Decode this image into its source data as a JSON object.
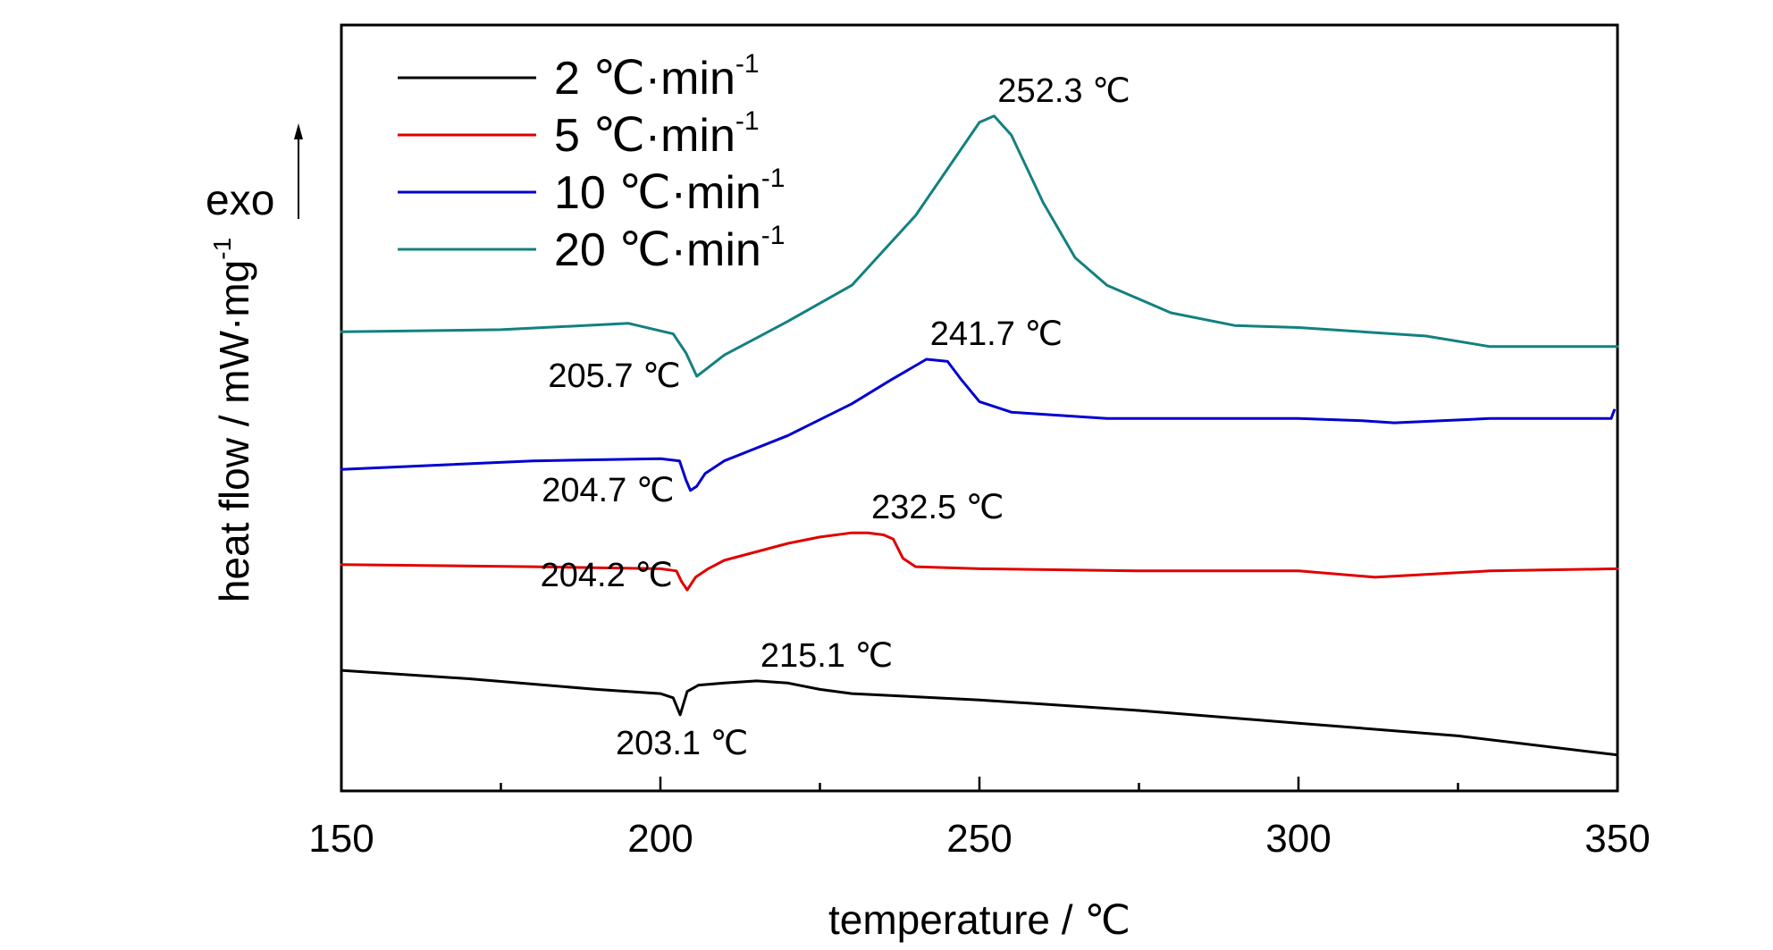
{
  "chart_data": {
    "type": "line",
    "xlabel": "temperature / ℃",
    "ylabel": "heat flow / mW·mg",
    "ylabel_superscript": "-1",
    "exo_label": "exo",
    "xlim": [
      150,
      350
    ],
    "x_ticks": [
      150,
      200,
      250,
      300,
      350
    ],
    "x_tick_labels": [
      "150",
      "200",
      "250",
      "300",
      "350"
    ],
    "y_ticks_shown": false,
    "legend_position": "top-left",
    "series": [
      {
        "name": "2 ℃·min",
        "name_superscript": "-1",
        "color": "#000000",
        "x": [
          150,
          170,
          190,
          200,
          202,
          203.1,
          204.2,
          206,
          210,
          215.1,
          220,
          225,
          230,
          250,
          275,
          300,
          325,
          350
        ],
        "y": [
          -1.15,
          -1.19,
          -1.24,
          -1.26,
          -1.28,
          -1.36,
          -1.25,
          -1.22,
          -1.21,
          -1.2,
          -1.21,
          -1.24,
          -1.26,
          -1.29,
          -1.34,
          -1.4,
          -1.46,
          -1.55
        ]
      },
      {
        "name": "5 ℃·min",
        "name_superscript": "-1",
        "color": "#e00000",
        "x": [
          150,
          180,
          200,
          202.5,
          203.3,
          204.2,
          205.5,
          207.5,
          210,
          215,
          220,
          225,
          230,
          232.5,
          235,
          236.5,
          238,
          240,
          250,
          275,
          300,
          312,
          330,
          350
        ],
        "y": [
          -0.65,
          -0.66,
          -0.67,
          -0.68,
          -0.73,
          -0.77,
          -0.71,
          -0.67,
          -0.63,
          -0.59,
          -0.55,
          -0.52,
          -0.5,
          -0.5,
          -0.51,
          -0.53,
          -0.62,
          -0.66,
          -0.67,
          -0.68,
          -0.68,
          -0.71,
          -0.68,
          -0.67
        ]
      },
      {
        "name": "10 ℃·min",
        "name_superscript": "-1",
        "color": "#0000d0",
        "x": [
          150,
          180,
          200,
          203,
          204,
          204.7,
          205.7,
          207,
          210,
          220,
          230,
          236,
          241.7,
          245,
          247,
          250,
          255,
          270,
          300,
          310,
          315,
          330,
          349,
          349.5
        ],
        "y": [
          -0.2,
          -0.16,
          -0.15,
          -0.16,
          -0.25,
          -0.3,
          -0.28,
          -0.22,
          -0.16,
          -0.04,
          0.11,
          0.22,
          0.32,
          0.31,
          0.23,
          0.12,
          0.07,
          0.04,
          0.04,
          0.03,
          0.02,
          0.04,
          0.04,
          0.08
        ]
      },
      {
        "name": "20 ℃·min",
        "name_superscript": "-1",
        "color": "#138080",
        "x": [
          150,
          175,
          195,
          202,
          204,
          205.7,
          207,
          210,
          215,
          220,
          230,
          240,
          245,
          250,
          252.3,
          255,
          260,
          265,
          270,
          280,
          290,
          300,
          320,
          330,
          350
        ],
        "y": [
          0.45,
          0.46,
          0.49,
          0.44,
          0.35,
          0.24,
          0.27,
          0.34,
          0.42,
          0.5,
          0.67,
          1.0,
          1.22,
          1.44,
          1.47,
          1.38,
          1.06,
          0.8,
          0.67,
          0.54,
          0.48,
          0.47,
          0.43,
          0.38,
          0.38
        ]
      }
    ],
    "annotations": [
      {
        "text": "252.3 ℃",
        "x": 252.3,
        "y": 1.47,
        "anchor": "above-right"
      },
      {
        "text": "241.7 ℃",
        "x": 241.7,
        "y": 0.32,
        "anchor": "above-right"
      },
      {
        "text": "232.5 ℃",
        "x": 232.5,
        "y": -0.5,
        "anchor": "above-right"
      },
      {
        "text": "215.1 ℃",
        "x": 215.1,
        "y": -1.2,
        "anchor": "above-right"
      },
      {
        "text": "205.7 ℃",
        "x": 205.7,
        "y": 0.24,
        "anchor": "left"
      },
      {
        "text": "204.7 ℃",
        "x": 204.7,
        "y": -0.3,
        "anchor": "left"
      },
      {
        "text": "204.2 ℃",
        "x": 204.2,
        "y": -0.77,
        "anchor": "left-above"
      },
      {
        "text": "203.1 ℃",
        "x": 203.1,
        "y": -1.36,
        "anchor": "below-left"
      }
    ]
  }
}
